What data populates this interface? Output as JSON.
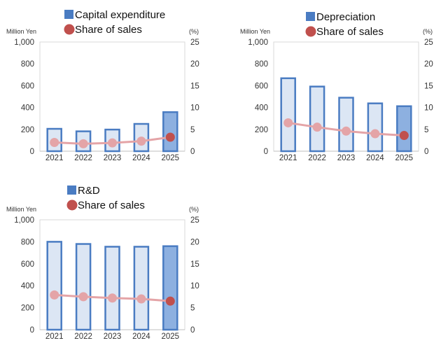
{
  "chart_data": [
    {
      "type": "bar+line",
      "categories": [
        "2021",
        "2022",
        "2023",
        "2024",
        "2025"
      ],
      "series": [
        {
          "name": "Capital expenditure",
          "kind": "bar",
          "axis": "left",
          "values": [
            205,
            182,
            198,
            250,
            358
          ],
          "color": "#4a7cc2",
          "fill": "#dce6f4",
          "highlight_fill": "#8db0e0"
        },
        {
          "name": "Share of sales",
          "kind": "line",
          "axis": "right",
          "values": [
            2.0,
            1.7,
            1.9,
            2.3,
            3.2
          ],
          "color": "#e4a4a7",
          "highlight_color": "#c0504d"
        }
      ],
      "left_unit": "Million Yen",
      "right_unit": "(%)",
      "left_ticks": [
        "0",
        "200",
        "400",
        "600",
        "800",
        "1,000"
      ],
      "right_ticks": [
        "0",
        "5",
        "10",
        "15",
        "20",
        "25"
      ],
      "ylim_left": [
        0,
        1000
      ],
      "ylim_right": [
        0,
        25
      ],
      "highlight_index": 4,
      "legend_position": "top"
    },
    {
      "type": "bar+line",
      "categories": [
        "2021",
        "2022",
        "2023",
        "2024",
        "2025"
      ],
      "series": [
        {
          "name": "Depreciation",
          "kind": "bar",
          "axis": "left",
          "values": [
            668,
            592,
            490,
            438,
            412
          ],
          "color": "#4a7cc2",
          "fill": "#dce6f4",
          "highlight_fill": "#8db0e0"
        },
        {
          "name": "Share of sales",
          "kind": "line",
          "axis": "right",
          "values": [
            6.5,
            5.5,
            4.6,
            4.0,
            3.6
          ],
          "color": "#e4a4a7",
          "highlight_color": "#c0504d"
        }
      ],
      "left_unit": "Million Yen",
      "right_unit": "(%)",
      "left_ticks": [
        "0",
        "200",
        "400",
        "600",
        "800",
        "1,000"
      ],
      "right_ticks": [
        "0",
        "5",
        "10",
        "15",
        "20",
        "25"
      ],
      "ylim_left": [
        0,
        1000
      ],
      "ylim_right": [
        0,
        25
      ],
      "highlight_index": 4,
      "legend_position": "top"
    },
    {
      "type": "bar+line",
      "categories": [
        "2021",
        "2022",
        "2023",
        "2024",
        "2025"
      ],
      "series": [
        {
          "name": "R&D",
          "kind": "bar",
          "axis": "left",
          "values": [
            800,
            780,
            755,
            755,
            760
          ],
          "color": "#4a7cc2",
          "fill": "#dce6f4",
          "highlight_fill": "#8db0e0"
        },
        {
          "name": "Share of sales",
          "kind": "line",
          "axis": "right",
          "values": [
            7.9,
            7.5,
            7.2,
            7.0,
            6.5
          ],
          "color": "#e4a4a7",
          "highlight_color": "#c0504d"
        }
      ],
      "left_unit": "Million Yen",
      "right_unit": "(%)",
      "left_ticks": [
        "0",
        "200",
        "400",
        "600",
        "800",
        "1,000"
      ],
      "right_ticks": [
        "0",
        "5",
        "10",
        "15",
        "20",
        "25"
      ],
      "ylim_left": [
        0,
        1000
      ],
      "ylim_right": [
        0,
        25
      ],
      "highlight_index": 4,
      "legend_position": "top"
    }
  ]
}
